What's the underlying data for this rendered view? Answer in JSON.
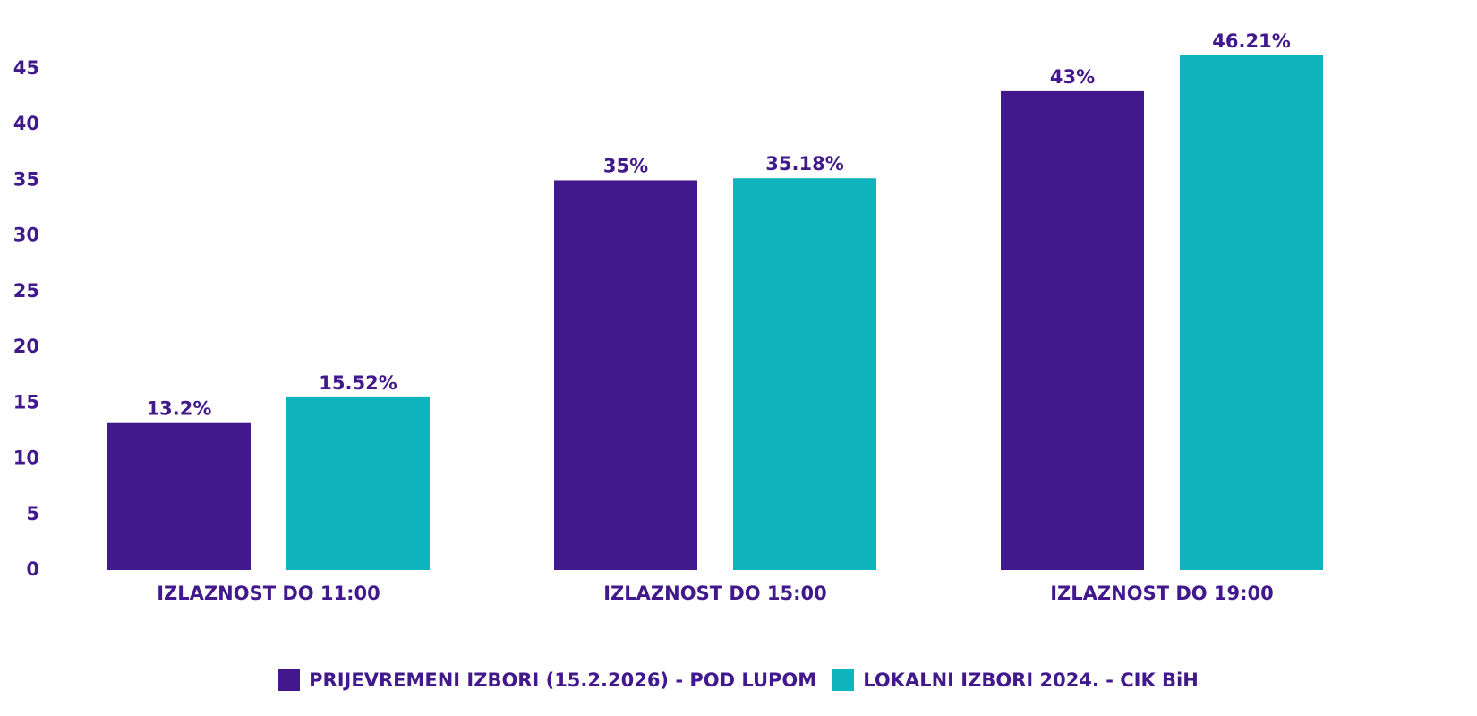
{
  "chart_data": {
    "type": "bar",
    "categories": [
      "IZLAZNOST DO 11:00",
      "IZLAZNOST DO 15:00",
      "IZLAZNOST DO 19:00"
    ],
    "series": [
      {
        "name": "PRIJEVREMENI IZBORI (15.2.2026) - POD LUPOM",
        "color": "#42198c",
        "values": [
          13.2,
          35,
          43
        ],
        "labels": [
          "13.2%",
          "35%",
          "43%"
        ]
      },
      {
        "name": "LOKALNI IZBORI 2024. - CIK BiH",
        "color": "#10b4bc",
        "values": [
          15.52,
          35.18,
          46.21
        ],
        "labels": [
          "15.52%",
          "35.18%",
          "46.21%"
        ]
      }
    ],
    "yticks": [
      "0",
      "5",
      "10",
      "15",
      "20",
      "25",
      "30",
      "35",
      "40",
      "45"
    ],
    "ylim": [
      0,
      45
    ],
    "text_color": "#42198c",
    "grid": false,
    "legend_position": "bottom-center"
  }
}
